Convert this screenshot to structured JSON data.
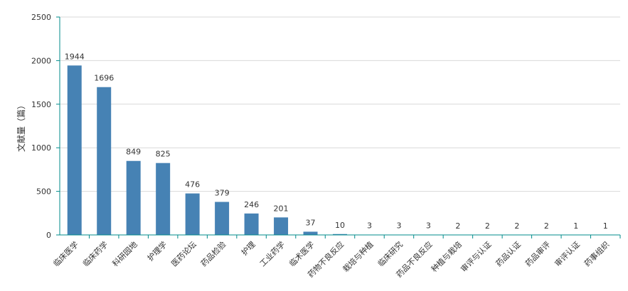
{
  "chart_data": {
    "type": "bar",
    "title": "",
    "xlabel": "",
    "ylabel": "文献量（篇）",
    "ylim": [
      0,
      2500
    ],
    "yticks": [
      0,
      500,
      1000,
      1500,
      2000,
      2500
    ],
    "grid": true,
    "legend": "none",
    "colors": {
      "bar": "#4682b4",
      "axis": "#008b8b",
      "grid": "#d9d9d9",
      "text": "#333333"
    },
    "categories": [
      "临床医学",
      "临床药学",
      "科研园地",
      "护理学",
      "医药论坛",
      "药品检验",
      "护理",
      "工业药学",
      "临术医学",
      "药物不良反应",
      "栽培与种植",
      "临床研究",
      "药品不良反应",
      "种植与栽培",
      "审评与认证",
      "药品认证",
      "药品审评",
      "审评认证",
      "药事组织"
    ],
    "values": [
      1944,
      1696,
      849,
      825,
      476,
      379,
      246,
      201,
      37,
      10,
      3,
      3,
      3,
      2,
      2,
      2,
      2,
      1,
      1
    ]
  }
}
